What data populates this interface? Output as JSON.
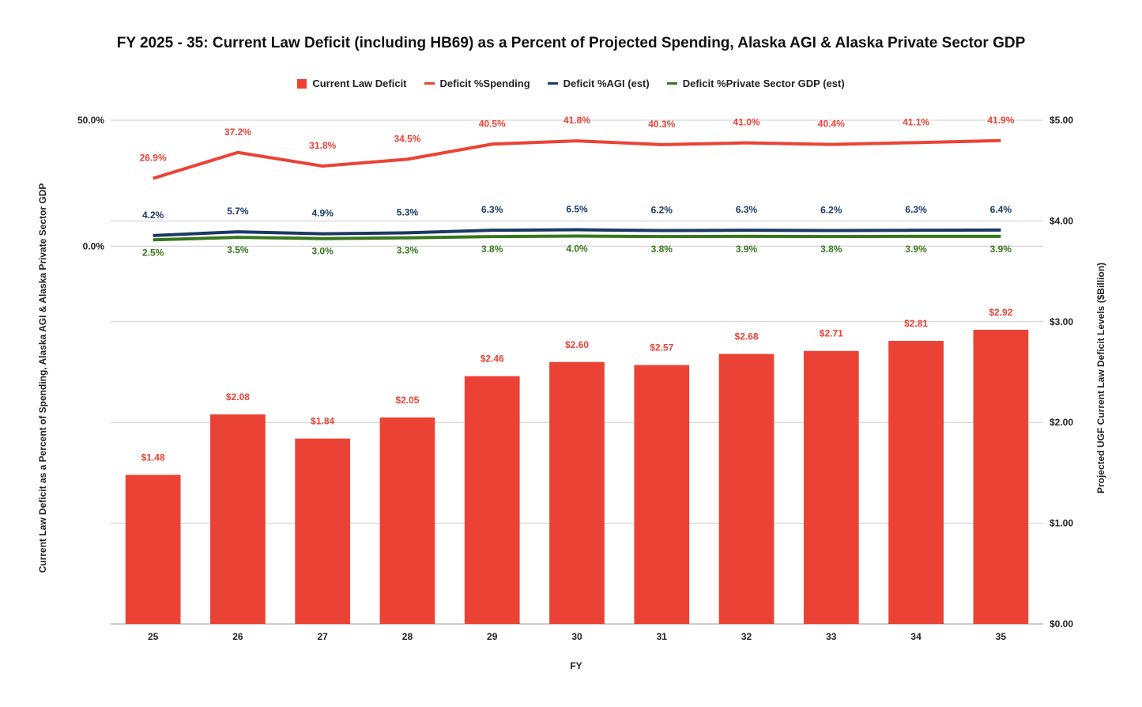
{
  "chart_data": {
    "type": "bar",
    "title": "FY 2025 - 35: Current Law Deficit (including HB69) as a Percent of Projected Spending, Alaska AGI & Alaska Private Sector GDP",
    "xlabel": "FY",
    "ylabel_left": "Current Law Deficit as a Percent of Spending, Alaska AGI & Alaska Private Sector GDP",
    "ylabel_right": "Projected UGF Current Law Deficit Levels ($Billion)",
    "categories": [
      "25",
      "26",
      "27",
      "28",
      "29",
      "30",
      "31",
      "32",
      "33",
      "34",
      "35"
    ],
    "y_left": {
      "ticks": [
        "50.0%",
        "0.0%"
      ],
      "lim": [
        -150,
        50
      ],
      "tick_values": [
        50,
        0
      ]
    },
    "y_right": {
      "ticks": [
        "$0.00",
        "$1.00",
        "$2.00",
        "$3.00",
        "$4.00",
        "$5.00"
      ],
      "lim": [
        0,
        5
      ],
      "tick_values": [
        0,
        1,
        2,
        3,
        4,
        5
      ]
    },
    "grid": true,
    "legend_position": "top",
    "series": [
      {
        "name": "Current Law Deficit",
        "type": "bar",
        "axis": "right",
        "color": "#ea4335",
        "values": [
          1.48,
          2.08,
          1.84,
          2.05,
          2.46,
          2.6,
          2.57,
          2.68,
          2.71,
          2.81,
          2.92
        ],
        "labels": [
          "$1.48",
          "$2.08",
          "$1.84",
          "$2.05",
          "$2.46",
          "$2.60",
          "$2.57",
          "$2.68",
          "$2.71",
          "$2.81",
          "$2.92"
        ]
      },
      {
        "name": "Deficit %Spending",
        "type": "line",
        "axis": "left",
        "color": "#ea4335",
        "values": [
          26.9,
          37.2,
          31.8,
          34.5,
          40.5,
          41.8,
          40.3,
          41.0,
          40.4,
          41.1,
          41.9
        ],
        "labels": [
          "26.9%",
          "37.2%",
          "31.8%",
          "34.5%",
          "40.5%",
          "41.8%",
          "40.3%",
          "41.0%",
          "40.4%",
          "41.1%",
          "41.9%"
        ]
      },
      {
        "name": "Deficit %AGI (est)",
        "type": "line",
        "axis": "left",
        "color": "#1a3a63",
        "values": [
          4.2,
          5.7,
          4.9,
          5.3,
          6.3,
          6.5,
          6.2,
          6.3,
          6.2,
          6.3,
          6.4
        ],
        "labels": [
          "4.2%",
          "5.7%",
          "4.9%",
          "5.3%",
          "6.3%",
          "6.5%",
          "6.2%",
          "6.3%",
          "6.2%",
          "6.3%",
          "6.4%"
        ]
      },
      {
        "name": "Deficit %Private Sector GDP (est)",
        "type": "line",
        "axis": "left",
        "color": "#38761d",
        "values": [
          2.5,
          3.5,
          3.0,
          3.3,
          3.8,
          4.0,
          3.8,
          3.9,
          3.8,
          3.9,
          3.9
        ],
        "labels": [
          "2.5%",
          "3.5%",
          "3.0%",
          "3.3%",
          "3.8%",
          "4.0%",
          "3.8%",
          "3.9%",
          "3.8%",
          "3.9%",
          "3.9%"
        ]
      }
    ]
  }
}
